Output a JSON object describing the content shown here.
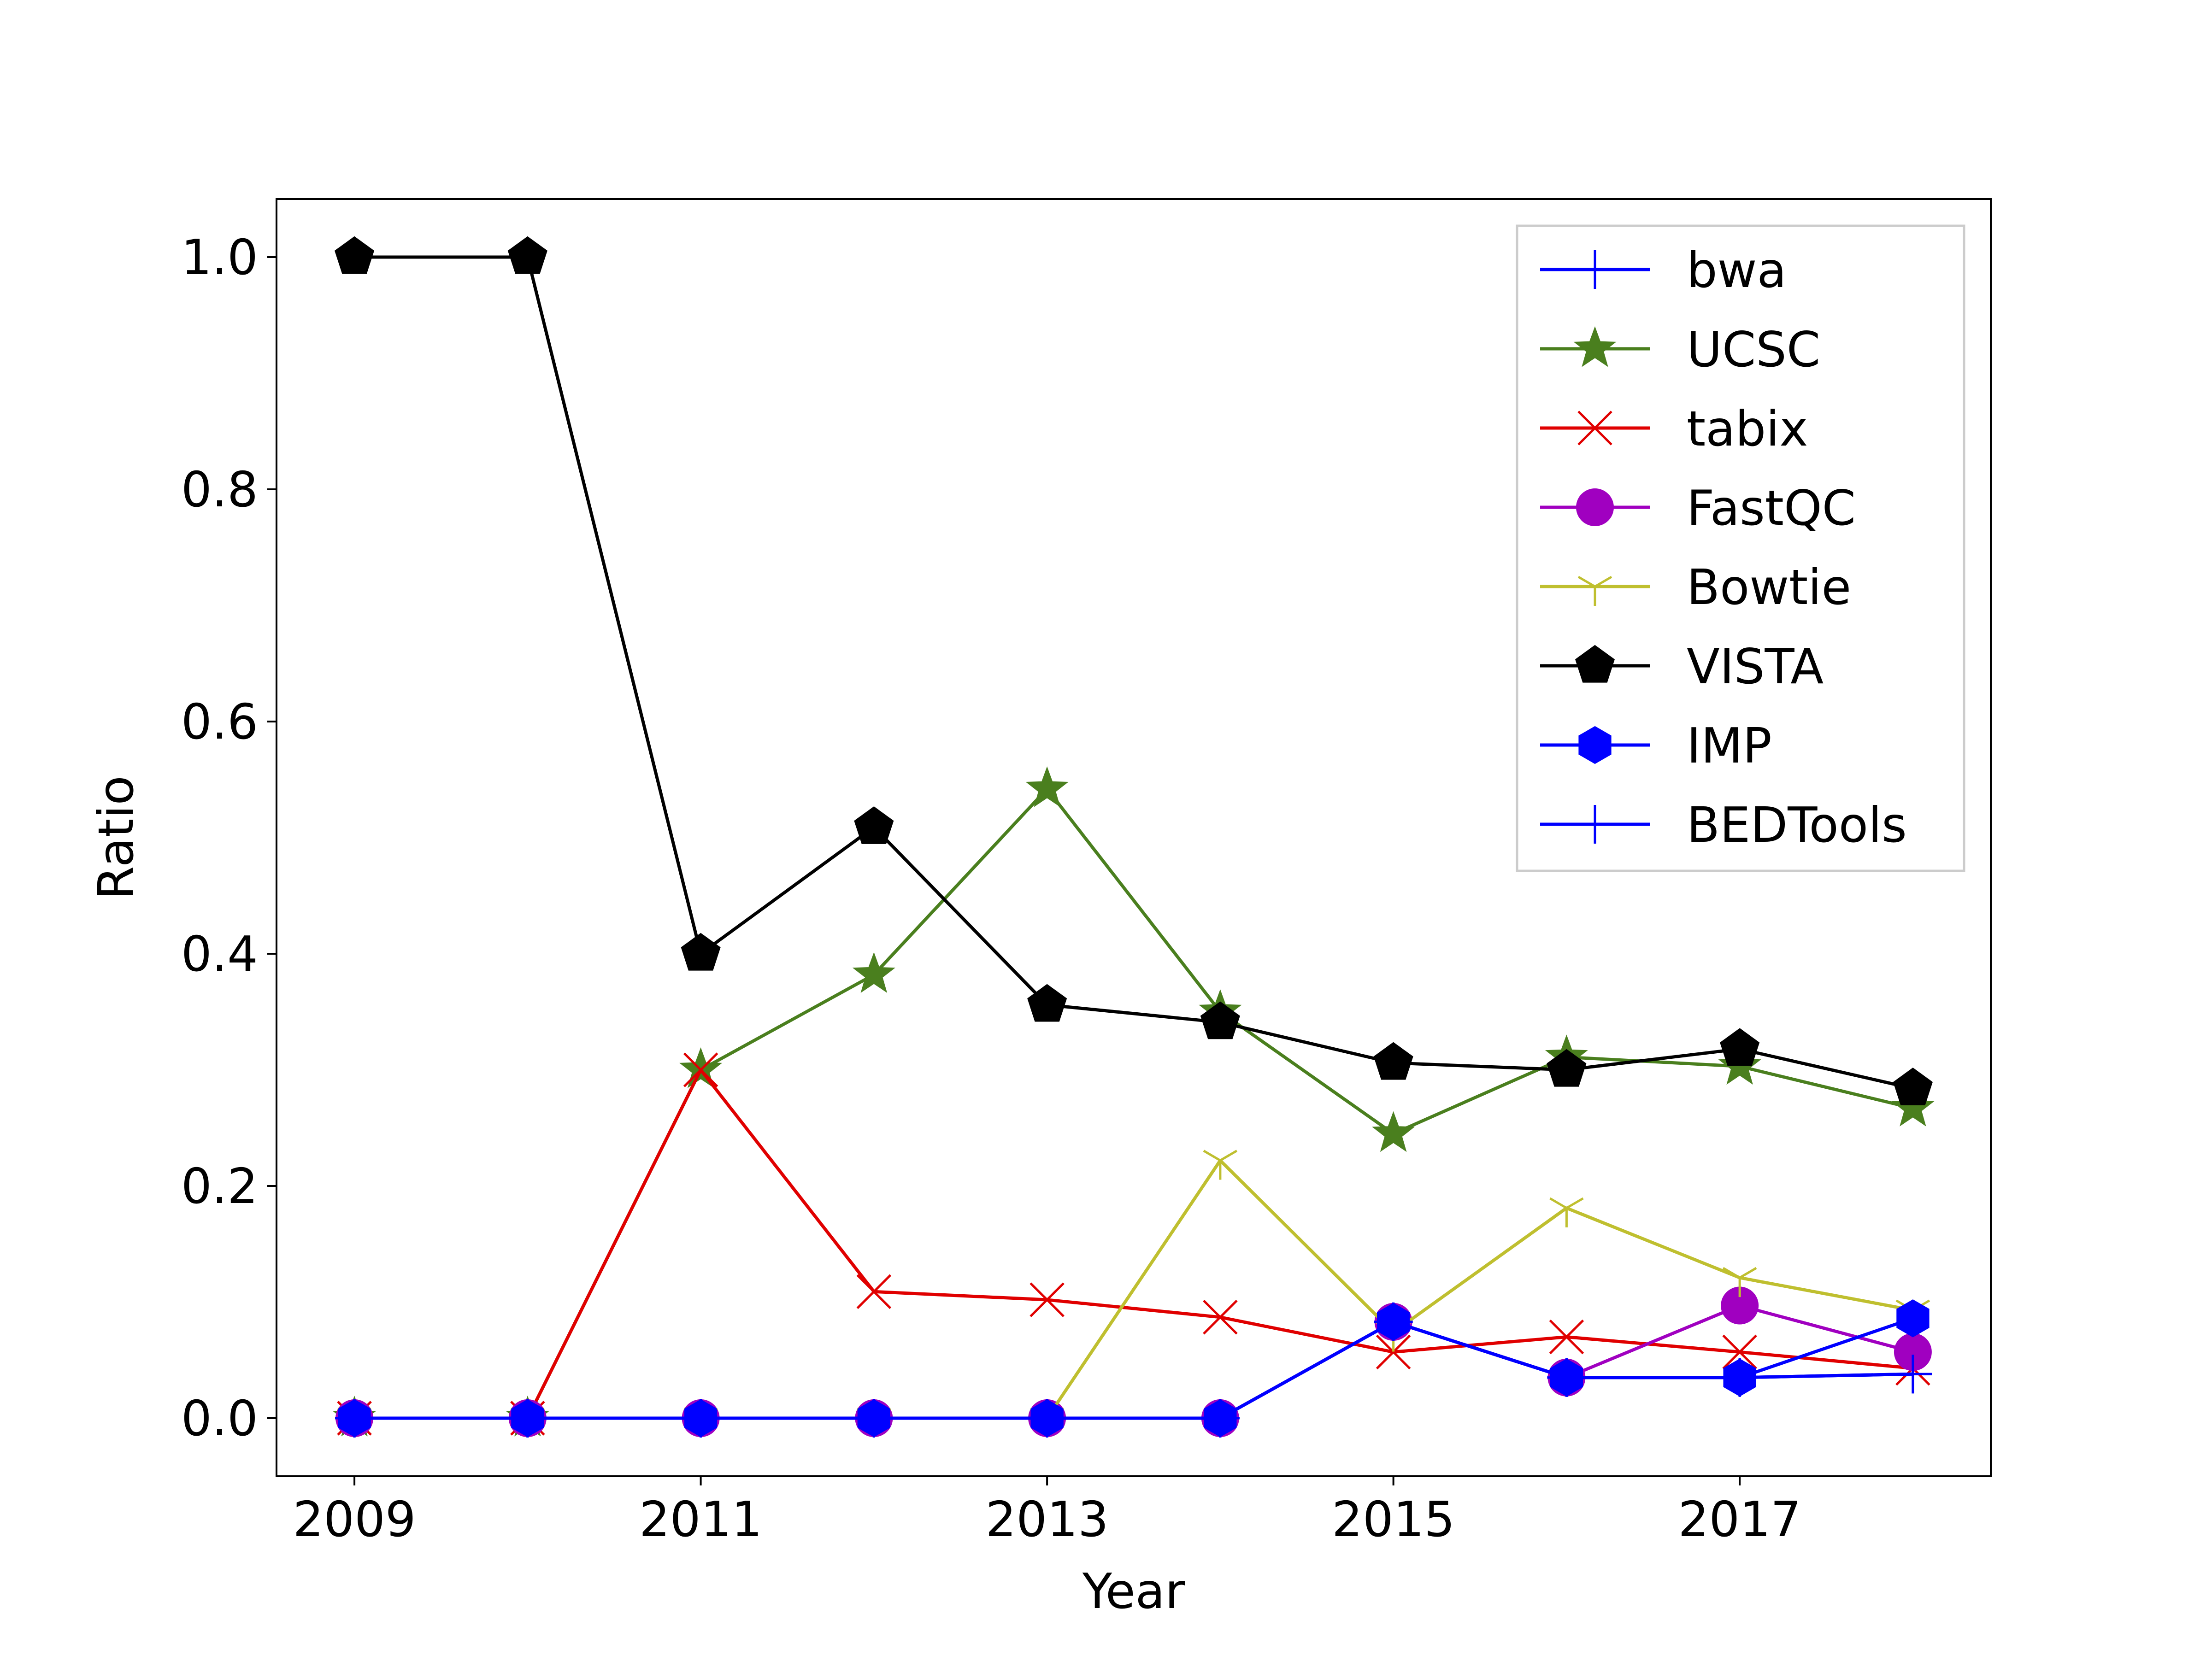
{
  "chart_data": {
    "type": "line",
    "title": "",
    "xlabel": "Year",
    "ylabel": "Ratio",
    "x": [
      2009,
      2010,
      2011,
      2012,
      2013,
      2014,
      2015,
      2016,
      2017,
      2018
    ],
    "xlim": [
      2008.55,
      2018.45
    ],
    "ylim": [
      -0.05,
      1.05
    ],
    "xticks": [
      2009,
      2011,
      2013,
      2015,
      2017
    ],
    "xtick_labels": [
      "2009",
      "2011",
      "2013",
      "2015",
      "2017"
    ],
    "yticks": [
      0.0,
      0.2,
      0.4,
      0.6,
      0.8,
      1.0
    ],
    "ytick_labels": [
      "0.0",
      "0.2",
      "0.4",
      "0.6",
      "0.8",
      "1.0"
    ],
    "grid": false,
    "legend_position": "top-right",
    "series": [
      {
        "name": "bwa",
        "color": "#0000ff",
        "marker": "plus",
        "values": [
          0,
          0,
          0,
          0,
          0,
          0,
          0.083,
          0.035,
          0.035,
          0.038
        ]
      },
      {
        "name": "UCSC",
        "color": "#4a7f1e",
        "marker": "star",
        "values": [
          0,
          0,
          0.3,
          0.382,
          0.542,
          0.35,
          0.245,
          0.311,
          0.303,
          0.267
        ]
      },
      {
        "name": "tabix",
        "color": "#e00000",
        "marker": "x",
        "values": [
          0,
          0,
          0.3,
          0.109,
          0.102,
          0.087,
          0.057,
          0.07,
          0.057,
          0.043
        ]
      },
      {
        "name": "FastQC",
        "color": "#a000c0",
        "marker": "circle",
        "values": [
          0,
          0,
          0,
          0,
          0,
          0,
          0.083,
          0.035,
          0.097,
          0.057
        ]
      },
      {
        "name": "Bowtie",
        "color": "#bfbf2f",
        "marker": "tri_down",
        "values": [
          0,
          0,
          0,
          0,
          0,
          0.222,
          0.074,
          0.181,
          0.121,
          0.093
        ]
      },
      {
        "name": "VISTA",
        "color": "#000000",
        "marker": "pentagon",
        "values": [
          1.0,
          1.0,
          0.4,
          0.509,
          0.356,
          0.341,
          0.306,
          0.3,
          0.318,
          0.284
        ]
      },
      {
        "name": "IMP",
        "color": "#0000ff",
        "marker": "hexagon",
        "values": [
          0,
          0,
          0,
          0,
          0,
          0,
          0.083,
          0.035,
          0.035,
          0.086
        ]
      },
      {
        "name": "BEDTools",
        "color": "#0000ff",
        "marker": "plus",
        "values": [
          0,
          0,
          0,
          0,
          0,
          0,
          0.083,
          0.035,
          0.035,
          0.038
        ]
      }
    ]
  }
}
